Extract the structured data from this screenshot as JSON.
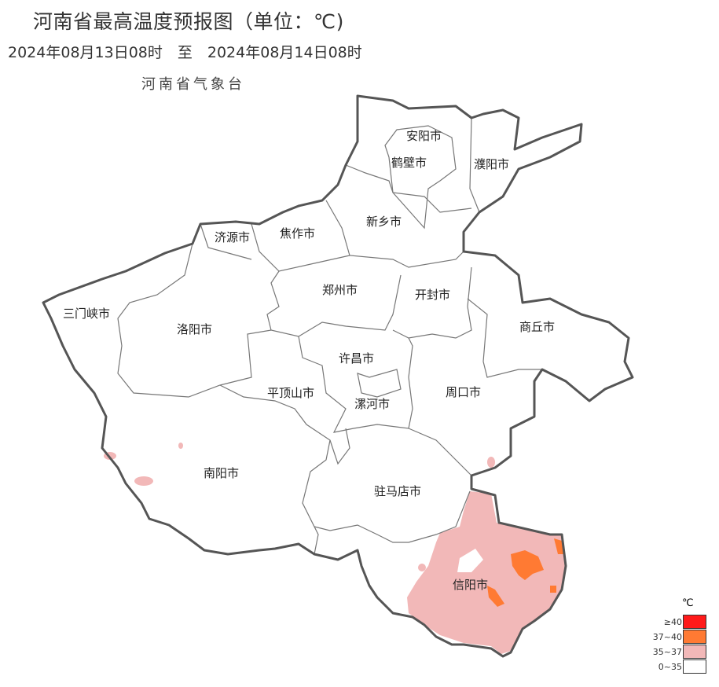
{
  "title": "河南省最高温度预报图（单位：℃)",
  "period": "2024年08月13日08时　至　2024年08月14日08时",
  "agency": "河南省气象台",
  "cities": [
    "安阳市",
    "鹤壁市",
    "濮阳市",
    "新乡市",
    "焦作市",
    "济源市",
    "郑州市",
    "开封市",
    "商丘市",
    "三门峡市",
    "洛阳市",
    "许昌市",
    "平顶山市",
    "漯河市",
    "周口市",
    "南阳市",
    "驻马店市",
    "信阳市"
  ],
  "legend": {
    "unit": "℃",
    "items": [
      {
        "label": "≥40",
        "color": "#ff1a1a"
      },
      {
        "label": "37~40",
        "color": "#ff7a33"
      },
      {
        "label": "35~37",
        "color": "#f2b8b8"
      },
      {
        "label": "0~35",
        "color": "#ffffff"
      }
    ]
  }
}
